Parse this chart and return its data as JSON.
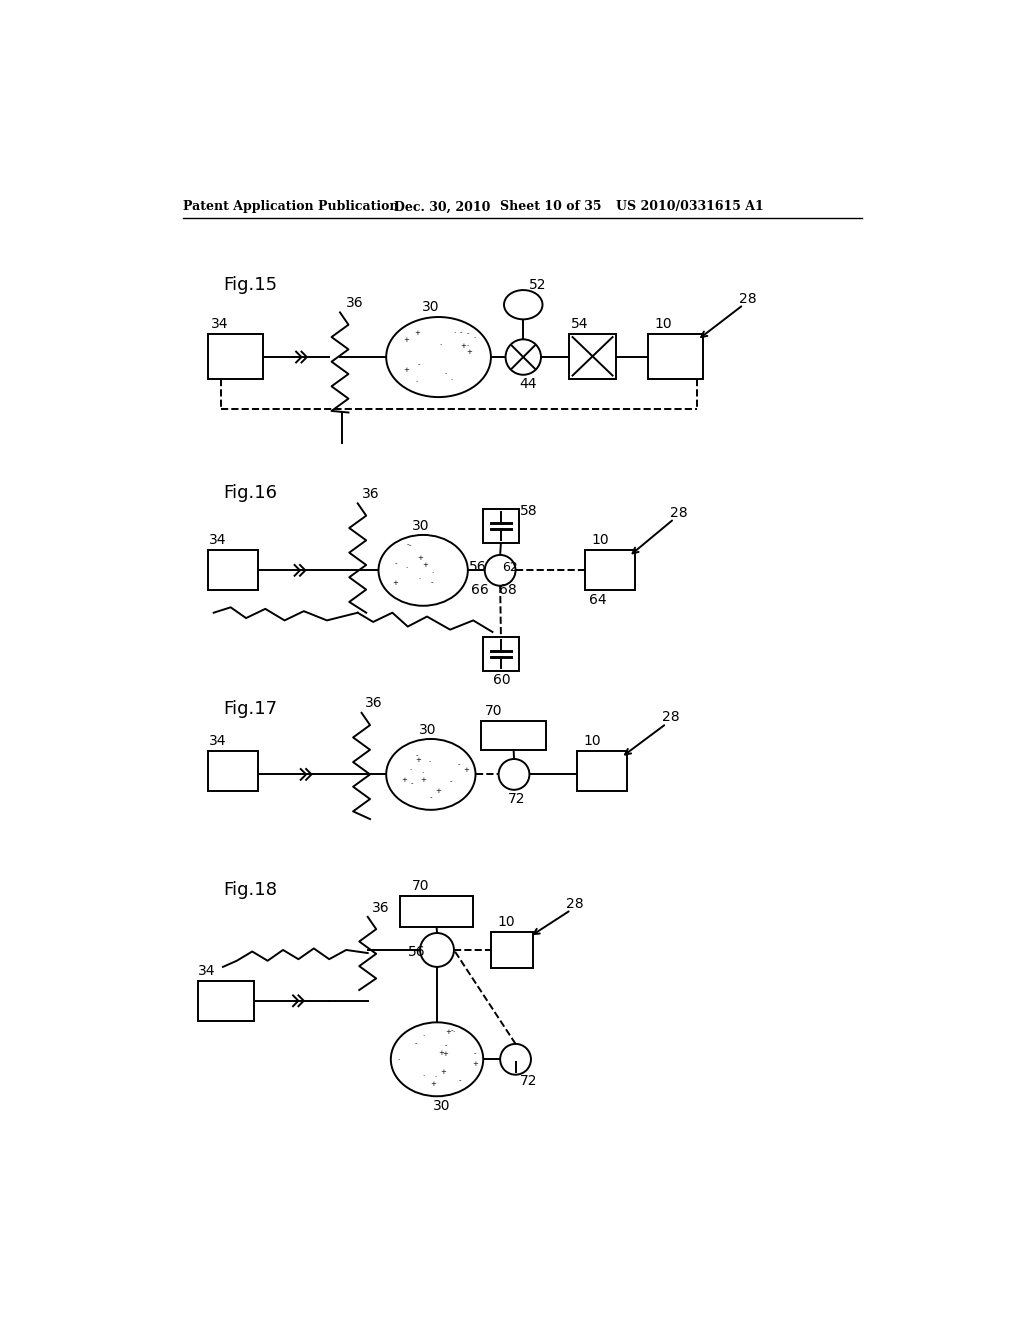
{
  "bg_color": "#ffffff",
  "header_text": "Patent Application Publication",
  "header_date": "Dec. 30, 2010",
  "header_sheet": "Sheet 10 of 35",
  "header_patent": "US 2010/0331615 A1",
  "fig15_label": "Fig.15",
  "fig16_label": "Fig.16",
  "fig17_label": "Fig.17",
  "fig18_label": "Fig.18",
  "lw": 1.4,
  "fs_label": 10,
  "fs_fig": 13,
  "fs_header": 9
}
